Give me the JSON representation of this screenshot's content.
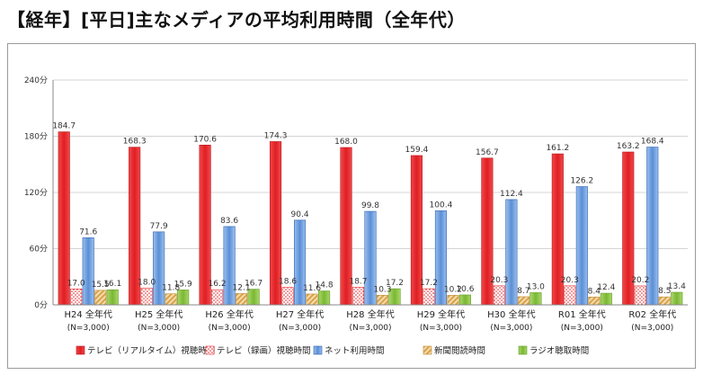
{
  "title": "【経年】[平日]主なメディアの平均利用時間（全年代）",
  "chart_data": {
    "type": "bar",
    "categories": [
      "H24 全年代",
      "H25 全年代",
      "H26 全年代",
      "H27 全年代",
      "H28 全年代",
      "H29 全年代",
      "H30 全年代",
      "R01 全年代",
      "R02 全年代"
    ],
    "sample_label": "(N=3,000)",
    "ylim": [
      0,
      240
    ],
    "yticks": [
      0,
      60,
      120,
      180,
      240
    ],
    "ytick_labels": [
      "0分",
      "60分",
      "120分",
      "180分",
      "240分"
    ],
    "grid": true,
    "legend_position": "bottom",
    "series": [
      {
        "name": "テレビ（リアルタイム）視聴時間",
        "color": "#e8262a",
        "pattern": "solid",
        "values": [
          184.7,
          168.3,
          170.6,
          174.3,
          168.0,
          159.4,
          156.7,
          161.2,
          163.2
        ],
        "labels": [
          "184.7",
          "168.3",
          "170.6",
          "174.3",
          "168.0",
          "159.4",
          "156.7",
          "161.2",
          "163.2"
        ]
      },
      {
        "name": "テレビ（録画）視聴時間",
        "color": "#e8262a",
        "pattern": "dots",
        "values": [
          17.0,
          18.0,
          16.2,
          18.6,
          18.7,
          17.2,
          20.3,
          20.3,
          20.2
        ],
        "labels": [
          "17.0",
          "18.0",
          "16.2",
          "18.6",
          "18.7",
          "17.2",
          "20.3",
          "20.3",
          "20.2"
        ]
      },
      {
        "name": "ネット利用時間",
        "color": "#5a8fd6",
        "pattern": "solid",
        "values": [
          71.6,
          77.9,
          83.6,
          90.4,
          99.8,
          100.4,
          112.4,
          126.2,
          168.4
        ],
        "labels": [
          "71.6",
          "77.9",
          "83.6",
          "90.4",
          "99.8",
          "100.4",
          "112.4",
          "126.2",
          "168.4"
        ]
      },
      {
        "name": "新聞閲読時間",
        "color": "#e5b86a",
        "pattern": "stripes",
        "values": [
          15.5,
          11.8,
          12.1,
          11.6,
          10.3,
          10.2,
          8.7,
          8.4,
          8.5
        ],
        "labels": [
          "15.5",
          "11.8",
          "12.1",
          "11.6",
          "10.3",
          "10.2",
          "8.7",
          "8.4",
          "8.5"
        ]
      },
      {
        "name": "ラジオ聴取時間",
        "color": "#8cc63f",
        "pattern": "solid",
        "values": [
          16.1,
          15.9,
          16.7,
          14.8,
          17.2,
          10.6,
          13.0,
          12.4,
          13.4
        ],
        "labels": [
          "16.1",
          "15.9",
          "16.7",
          "14.8",
          "17.2",
          "10.6",
          "13.0",
          "12.4",
          "13.4"
        ]
      }
    ]
  }
}
